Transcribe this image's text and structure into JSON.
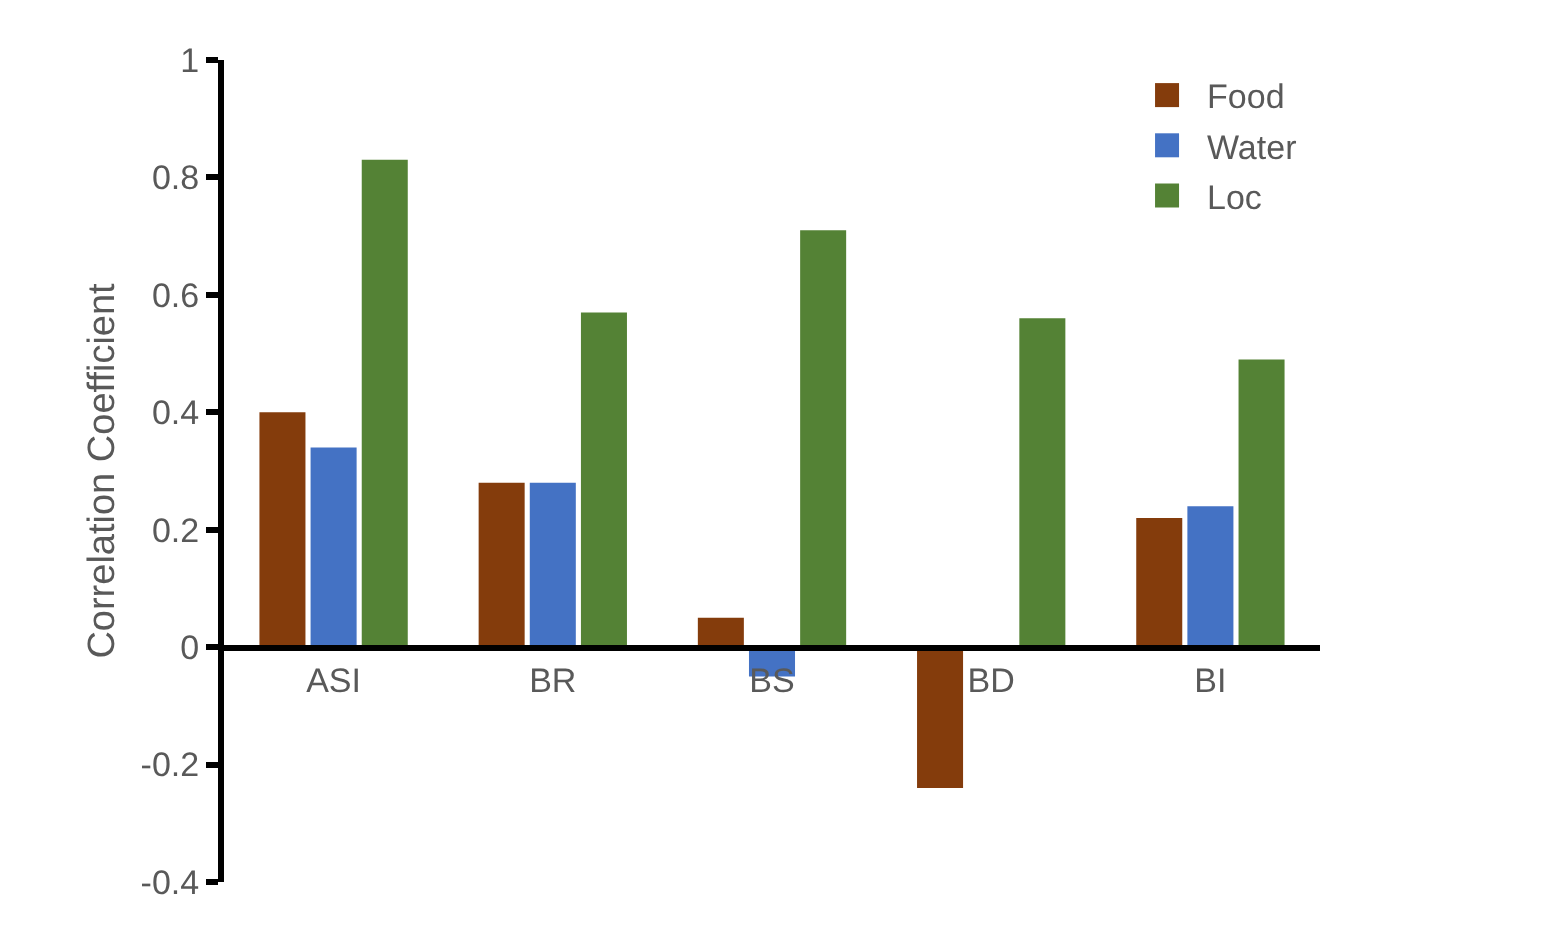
{
  "chart_data": {
    "type": "bar",
    "ylabel": "Correlation Coefficient",
    "categories": [
      "ASI",
      "BR",
      "BS",
      "BD",
      "BI"
    ],
    "series": [
      {
        "name": "Food",
        "color": "#843c0c",
        "values": [
          0.4,
          0.28,
          0.05,
          -0.24,
          0.22
        ]
      },
      {
        "name": "Water",
        "color": "#4472c4",
        "values": [
          0.34,
          0.28,
          -0.05,
          null,
          0.24
        ]
      },
      {
        "name": "Loc",
        "color": "#548235",
        "values": [
          0.83,
          0.57,
          0.71,
          0.56,
          0.49
        ]
      }
    ],
    "ylim": [
      -0.4,
      1
    ],
    "yticks": [
      -0.4,
      -0.2,
      0,
      0.2,
      0.4,
      0.6,
      0.8,
      1
    ],
    "grid": false,
    "legend": "top right"
  }
}
